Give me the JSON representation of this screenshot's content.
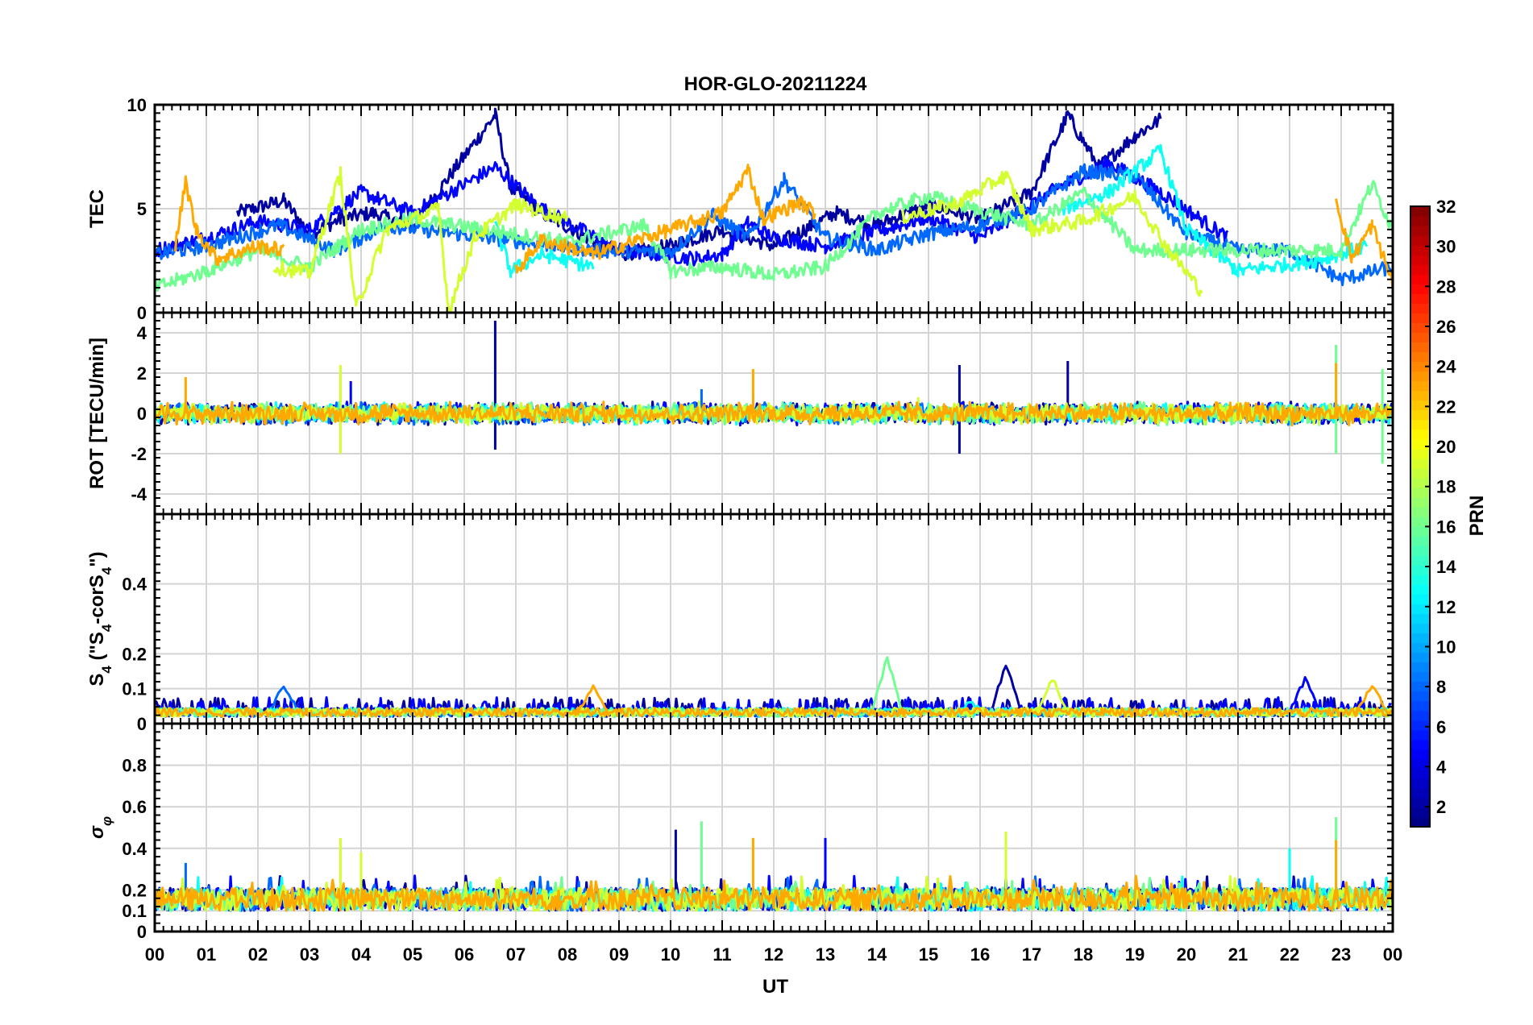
{
  "chart_data": {
    "type": "line",
    "title": "HOR-GLO-20211224",
    "xlabel": "UT",
    "x_tick_labels": [
      "00",
      "01",
      "02",
      "03",
      "04",
      "05",
      "06",
      "07",
      "08",
      "09",
      "10",
      "11",
      "12",
      "13",
      "14",
      "15",
      "16",
      "17",
      "18",
      "19",
      "20",
      "21",
      "22",
      "23",
      "00"
    ],
    "xlim": [
      0,
      24
    ],
    "grid": true,
    "panels": [
      {
        "name": "tec",
        "ylabel": "TEC",
        "ylim": [
          0,
          10
        ],
        "yticks": [
          0,
          5,
          10
        ],
        "ytick_labels": [
          "0",
          "5",
          "10"
        ],
        "description": "Slant TEC per PRN, mostly between 2 and 6 TECU with peaks near 9.5 around 06.6 UT and 17.7 UT"
      },
      {
        "name": "rot",
        "ylabel": "ROT [TECU/min]",
        "ylim": [
          -5,
          5
        ],
        "yticks": [
          -4,
          -2,
          0,
          2,
          4
        ],
        "ytick_labels": [
          "-4",
          "-2",
          "0",
          "2",
          "4"
        ],
        "description": "Rate of TEC change clustered near 0 with spikes up to about 4.6 at 06.6 UT"
      },
      {
        "name": "s4",
        "ylabel_main": "S",
        "ylabel_sub": "4",
        "ylabel_rest": " (\"S",
        "ylabel_sub2": "4",
        "ylabel_rest2": "-corS",
        "ylabel_sub3": "4",
        "ylabel_end": "\")",
        "ylim": [
          0,
          0.6
        ],
        "yticks": [
          0,
          0.1,
          0.2,
          0.4
        ],
        "ytick_labels": [
          "0",
          "0.1",
          "0.2",
          "0.4"
        ],
        "description": "Amplitude scintillation index mostly below 0.1, maximum about 0.19 near 14.2 UT"
      },
      {
        "name": "sigma_phi",
        "ylabel_main": "σ",
        "ylabel_sub": "φ",
        "ylim": [
          0,
          1
        ],
        "yticks": [
          0,
          0.1,
          0.2,
          0.4,
          0.6,
          0.8
        ],
        "ytick_labels": [
          "0",
          "0.1",
          "0.2",
          "0.4",
          "0.6",
          "0.8"
        ],
        "description": "Phase scintillation index mostly 0.1 to 0.25 with spikes near 0.5"
      }
    ],
    "colorbar": {
      "label": "PRN",
      "range": [
        1,
        32
      ],
      "colormap": "jet",
      "ticks": [
        2,
        4,
        6,
        8,
        10,
        12,
        14,
        16,
        18,
        20,
        22,
        24,
        26,
        28,
        30,
        32
      ],
      "tick_labels": [
        "2",
        "4",
        "6",
        "8",
        "10",
        "12",
        "14",
        "16",
        "18",
        "20",
        "22",
        "24",
        "26",
        "28",
        "30",
        "32"
      ]
    },
    "series": [
      {
        "prn": 2,
        "tec": [
          [
            1.6,
            4.8
          ],
          [
            2.5,
            5.4
          ],
          [
            3.0,
            3.8
          ],
          [
            3.6,
            4.5
          ],
          [
            4.2,
            4.8
          ],
          [
            5.0,
            4.2
          ],
          [
            6.6,
            9.5
          ],
          [
            6.9,
            6.0
          ],
          [
            7.5,
            4.8
          ],
          [
            9.0,
            2.8
          ],
          [
            10.0,
            3.2
          ],
          [
            11.0,
            4.0
          ],
          [
            12.0,
            3.2
          ],
          [
            13.2,
            4.8
          ],
          [
            14.0,
            4.2
          ],
          [
            15.0,
            5.2
          ],
          [
            16.0,
            4.5
          ],
          [
            17.0,
            5.8
          ],
          [
            17.7,
            9.5
          ],
          [
            18.3,
            7.0
          ],
          [
            19.0,
            8.5
          ],
          [
            19.5,
            9.3
          ]
        ],
        "rot_spikes": [
          [
            6.6,
            4.6
          ],
          [
            6.6,
            -1.8
          ],
          [
            15.6,
            2.4
          ],
          [
            15.6,
            -2.0
          ],
          [
            17.7,
            2.6
          ]
        ],
        "s4_peaks": [
          [
            16.5,
            0.17
          ]
        ],
        "sigma_spikes": [
          [
            10.1,
            0.49
          ]
        ]
      },
      {
        "prn": 5,
        "tec": [
          [
            0.0,
            3.0
          ],
          [
            1.0,
            3.6
          ],
          [
            2.0,
            4.4
          ],
          [
            3.0,
            4.0
          ],
          [
            4.0,
            5.8
          ],
          [
            5.0,
            4.8
          ],
          [
            6.6,
            7.0
          ],
          [
            7.5,
            5.0
          ],
          [
            9.0,
            3.0
          ],
          [
            10.5,
            2.6
          ],
          [
            11.0,
            2.8
          ],
          [
            11.5,
            4.3
          ],
          [
            12.0,
            3.6
          ],
          [
            13.0,
            3.2
          ],
          [
            15.0,
            4.6
          ],
          [
            16.0,
            3.6
          ],
          [
            17.5,
            6.0
          ],
          [
            18.5,
            7.2
          ],
          [
            19.5,
            5.8
          ],
          [
            20.8,
            3.6
          ]
        ],
        "rot_spikes": [
          [
            3.8,
            1.6
          ]
        ],
        "s4_peaks": [
          [
            22.3,
            0.13
          ]
        ],
        "sigma_spikes": [
          [
            13.0,
            0.45
          ]
        ]
      },
      {
        "prn": 8,
        "tec": [
          [
            0.0,
            2.8
          ],
          [
            1.0,
            3.2
          ],
          [
            2.4,
            4.2
          ],
          [
            3.5,
            3.0
          ],
          [
            4.5,
            4.2
          ],
          [
            6.5,
            3.6
          ],
          [
            7.5,
            3.3
          ],
          [
            8.5,
            3.0
          ],
          [
            10.0,
            2.9
          ],
          [
            10.8,
            4.7
          ],
          [
            11.5,
            3.6
          ],
          [
            12.2,
            6.4
          ],
          [
            13.0,
            3.6
          ],
          [
            14.0,
            3.0
          ],
          [
            15.0,
            3.8
          ],
          [
            16.0,
            4.2
          ],
          [
            17.0,
            5.0
          ],
          [
            18.0,
            6.8
          ],
          [
            19.0,
            6.6
          ],
          [
            20.0,
            3.8
          ],
          [
            21.0,
            3.0
          ],
          [
            22.0,
            3.0
          ],
          [
            23.0,
            1.6
          ],
          [
            24.0,
            2.2
          ]
        ],
        "rot_spikes": [
          [
            10.6,
            1.2
          ]
        ],
        "s4_peaks": [
          [
            2.5,
            0.11
          ]
        ],
        "sigma_spikes": [
          [
            0.6,
            0.33
          ]
        ]
      },
      {
        "prn": 13,
        "tec": [
          [
            6.6,
            4.2
          ],
          [
            6.9,
            2.0
          ],
          [
            7.5,
            2.8
          ],
          [
            8.5,
            2.2
          ],
          [
            17.6,
            5.0
          ],
          [
            18.5,
            5.8
          ],
          [
            19.5,
            7.8
          ],
          [
            20.0,
            4.0
          ],
          [
            21.0,
            2.0
          ],
          [
            22.5,
            2.5
          ],
          [
            23.5,
            3.2
          ]
        ],
        "rot_spikes": [
          [
            11.6,
            1.0
          ]
        ],
        "s4_peaks": [
          [
            15.8,
            0.06
          ]
        ],
        "sigma_spikes": [
          [
            22.0,
            0.4
          ]
        ]
      },
      {
        "prn": 16,
        "tec": [
          [
            0.0,
            1.2
          ],
          [
            1.0,
            2.0
          ],
          [
            2.0,
            3.0
          ],
          [
            3.0,
            2.2
          ],
          [
            4.0,
            4.0
          ],
          [
            5.0,
            4.5
          ],
          [
            8.0,
            3.4
          ],
          [
            9.5,
            4.2
          ],
          [
            10.0,
            2.0
          ],
          [
            11.0,
            2.2
          ],
          [
            12.0,
            1.8
          ],
          [
            13.0,
            2.2
          ],
          [
            14.0,
            4.8
          ],
          [
            15.0,
            5.6
          ],
          [
            17.0,
            4.2
          ],
          [
            18.0,
            5.8
          ],
          [
            19.0,
            3.0
          ],
          [
            22.0,
            3.0
          ],
          [
            23.0,
            3.0
          ],
          [
            23.6,
            6.2
          ],
          [
            24.0,
            4.0
          ]
        ],
        "rot_spikes": [
          [
            22.9,
            3.4
          ],
          [
            22.9,
            -2.0
          ],
          [
            23.8,
            2.2
          ],
          [
            23.8,
            -2.5
          ]
        ],
        "s4_peaks": [
          [
            14.2,
            0.19
          ]
        ],
        "sigma_spikes": [
          [
            10.6,
            0.53
          ],
          [
            22.9,
            0.55
          ]
        ]
      },
      {
        "prn": 19,
        "tec": [
          [
            2.3,
            2.2
          ],
          [
            3.0,
            1.9
          ],
          [
            3.6,
            6.7
          ],
          [
            3.9,
            0.2
          ],
          [
            4.5,
            4.0
          ],
          [
            5.5,
            5.0
          ],
          [
            5.7,
            0.1
          ],
          [
            6.2,
            3.6
          ],
          [
            7.0,
            5.2
          ],
          [
            8.0,
            4.5
          ],
          [
            14.5,
            4.6
          ],
          [
            15.5,
            5.2
          ],
          [
            16.5,
            6.6
          ],
          [
            17.0,
            4.0
          ],
          [
            18.0,
            4.4
          ],
          [
            19.0,
            5.6
          ],
          [
            19.6,
            3.2
          ],
          [
            20.3,
            1.0
          ]
        ],
        "rot_spikes": [
          [
            3.6,
            2.4
          ],
          [
            3.6,
            -2.0
          ],
          [
            14.8,
            0.8
          ]
        ],
        "s4_peaks": [
          [
            17.4,
            0.13
          ]
        ],
        "sigma_spikes": [
          [
            3.6,
            0.45
          ],
          [
            4.0,
            0.38
          ],
          [
            16.5,
            0.48
          ]
        ]
      },
      {
        "prn": 23,
        "tec": [
          [
            0.4,
            3.2
          ],
          [
            0.6,
            6.3
          ],
          [
            0.8,
            4.0
          ],
          [
            1.2,
            2.6
          ],
          [
            2.0,
            3.2
          ],
          [
            2.5,
            3.0
          ],
          [
            7.0,
            2.0
          ],
          [
            7.5,
            3.5
          ],
          [
            8.5,
            2.8
          ],
          [
            11.0,
            4.8
          ],
          [
            11.5,
            6.9
          ],
          [
            11.8,
            4.5
          ],
          [
            12.5,
            5.3
          ],
          [
            12.8,
            4.8
          ],
          [
            22.9,
            5.5
          ],
          [
            23.2,
            2.6
          ],
          [
            23.6,
            4.2
          ],
          [
            24.0,
            1.4
          ]
        ],
        "rot_spikes": [
          [
            0.6,
            1.8
          ],
          [
            11.6,
            2.2
          ],
          [
            22.9,
            2.5
          ]
        ],
        "s4_peaks": [
          [
            8.5,
            0.11
          ],
          [
            23.6,
            0.11
          ]
        ],
        "sigma_spikes": [
          [
            0.0,
            0.42
          ],
          [
            11.6,
            0.45
          ],
          [
            22.9,
            0.44
          ]
        ]
      }
    ]
  }
}
